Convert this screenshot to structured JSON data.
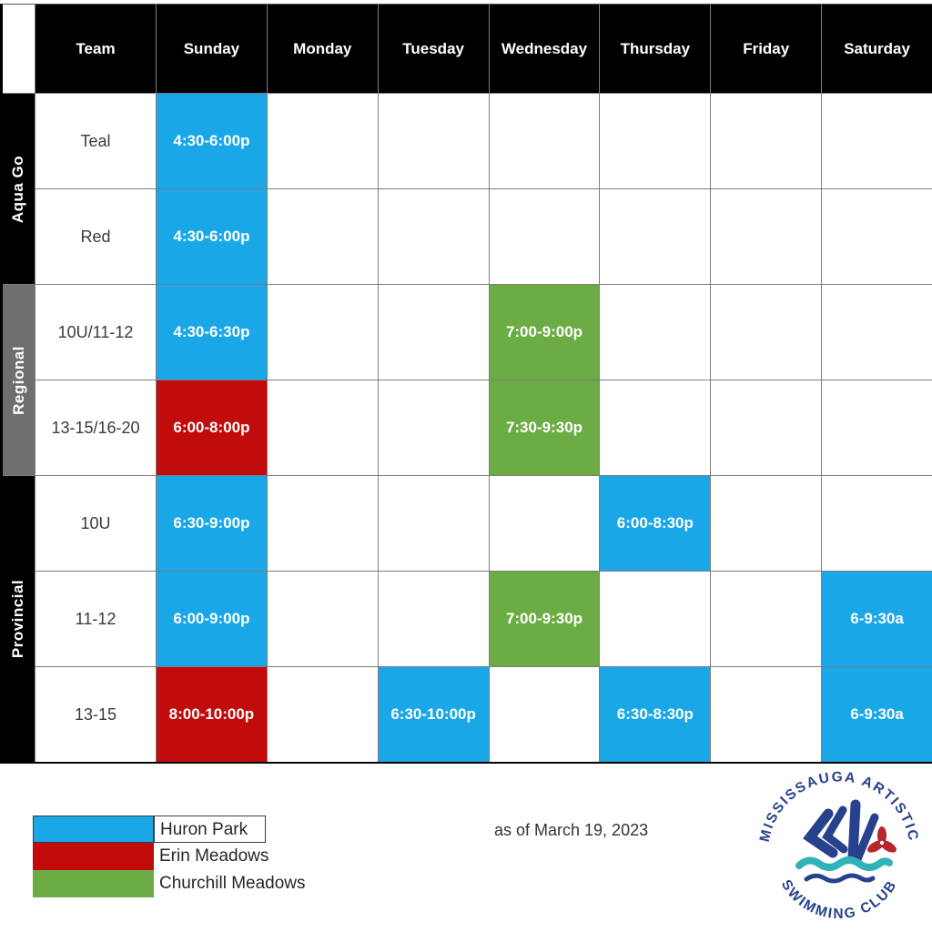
{
  "table": {
    "columns": [
      "Team",
      "Sunday",
      "Monday",
      "Tuesday",
      "Wednesday",
      "Thursday",
      "Friday",
      "Saturday"
    ],
    "groups": [
      {
        "label": "Aqua Go",
        "band_color": "#000000",
        "rows": [
          {
            "team": "Teal",
            "cells": {
              "Sunday": {
                "time": "4:30-6:00p",
                "venue": "huron_park"
              }
            }
          },
          {
            "team": "Red",
            "cells": {
              "Sunday": {
                "time": "4:30-6:00p",
                "venue": "huron_park"
              }
            }
          }
        ]
      },
      {
        "label": "Regional",
        "band_color": "#6E6E6E",
        "rows": [
          {
            "team": "10U/11-12",
            "cells": {
              "Sunday": {
                "time": "4:30-6:30p",
                "venue": "huron_park"
              },
              "Wednesday": {
                "time": "7:00-9:00p",
                "venue": "churchill_meadows"
              }
            }
          },
          {
            "team": "13-15/16-20",
            "cells": {
              "Sunday": {
                "time": "6:00-8:00p",
                "venue": "erin_meadows"
              },
              "Wednesday": {
                "time": "7:30-9:30p",
                "venue": "churchill_meadows"
              }
            }
          }
        ]
      },
      {
        "label": "Provincial",
        "band_color": "#000000",
        "rows": [
          {
            "team": "10U",
            "cells": {
              "Sunday": {
                "time": "6:30-9:00p",
                "venue": "huron_park"
              },
              "Thursday": {
                "time": "6:00-8:30p",
                "venue": "huron_park"
              }
            }
          },
          {
            "team": "11-12",
            "cells": {
              "Sunday": {
                "time": "6:00-9:00p",
                "venue": "huron_park"
              },
              "Wednesday": {
                "time": "7:00-9:30p",
                "venue": "churchill_meadows"
              },
              "Saturday": {
                "time": "6-9:30a",
                "venue": "huron_park"
              }
            }
          },
          {
            "team": "13-15",
            "cells": {
              "Sunday": {
                "time": "8:00-10:00p",
                "venue": "erin_meadows"
              },
              "Tuesday": {
                "time": "6:30-10:00p",
                "venue": "huron_park"
              },
              "Thursday": {
                "time": "6:30-8:30p",
                "venue": "huron_park"
              },
              "Saturday": {
                "time": "6-9:30a",
                "venue": "huron_park"
              }
            }
          }
        ]
      }
    ]
  },
  "venue_colors": {
    "huron_park": "#1AA7E8",
    "erin_meadows": "#C20B0B",
    "churchill_meadows": "#6CAC44"
  },
  "legend": {
    "items": [
      {
        "label": "Huron Park",
        "venue": "huron_park",
        "boxed": true
      },
      {
        "label": "Erin Meadows",
        "venue": "erin_meadows",
        "boxed": false
      },
      {
        "label": "Churchill Meadows",
        "venue": "churchill_meadows",
        "boxed": false
      }
    ]
  },
  "footer": {
    "as_of": "as of March 19, 2023"
  },
  "logo": {
    "top_text": "MISSISSAUGA ARTISTIC",
    "bottom_text": "SWIMMING CLUB",
    "colors": {
      "navy": "#27418E",
      "teal": "#2FB3B8",
      "red": "#B5272E"
    }
  }
}
